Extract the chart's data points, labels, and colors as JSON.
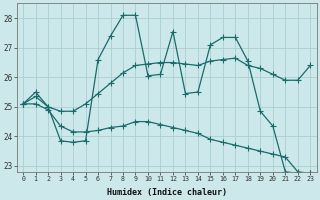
{
  "xlabel": "Humidex (Indice chaleur)",
  "xlim": [
    -0.5,
    23.5
  ],
  "ylim": [
    22.8,
    28.5
  ],
  "yticks": [
    23,
    24,
    25,
    26,
    27,
    28
  ],
  "xticks": [
    0,
    1,
    2,
    3,
    4,
    5,
    6,
    7,
    8,
    9,
    10,
    11,
    12,
    13,
    14,
    15,
    16,
    17,
    18,
    19,
    20,
    21,
    22,
    23
  ],
  "background_color": "#cce8ea",
  "grid_color": "#aacfd2",
  "line_color": "#1a6b6b",
  "curve1_x": [
    0,
    1,
    2,
    3,
    4,
    5,
    6,
    7,
    8,
    9,
    10,
    11,
    12,
    13,
    14,
    15,
    16,
    17,
    18,
    19,
    20,
    21,
    22,
    23
  ],
  "curve1_y": [
    25.1,
    25.5,
    25.0,
    23.85,
    23.8,
    23.85,
    26.6,
    27.4,
    28.1,
    28.1,
    26.05,
    26.1,
    27.55,
    25.45,
    25.5,
    27.1,
    27.35,
    27.35,
    26.55,
    24.85,
    24.35,
    22.8,
    22.75,
    22.75
  ],
  "curve2_x": [
    0,
    1,
    2,
    3,
    4,
    5,
    6,
    7,
    8,
    9,
    10,
    11,
    12,
    13,
    14,
    15,
    16,
    17,
    18,
    19,
    20,
    21,
    22,
    23
  ],
  "curve2_y": [
    25.1,
    25.35,
    25.0,
    24.85,
    24.85,
    25.1,
    25.45,
    25.8,
    26.15,
    26.4,
    26.45,
    26.5,
    26.5,
    26.45,
    26.4,
    26.55,
    26.6,
    26.65,
    26.4,
    26.3,
    26.1,
    25.9,
    25.9,
    26.4
  ],
  "curve3_x": [
    0,
    1,
    2,
    3,
    4,
    5,
    6,
    7,
    8,
    9,
    10,
    11,
    12,
    13,
    14,
    15,
    16,
    17,
    18,
    19,
    20,
    21,
    22,
    23
  ],
  "curve3_y": [
    25.1,
    25.1,
    24.9,
    24.35,
    24.15,
    24.15,
    24.2,
    24.3,
    24.35,
    24.5,
    24.5,
    24.4,
    24.3,
    24.2,
    24.1,
    23.9,
    23.8,
    23.7,
    23.6,
    23.5,
    23.4,
    23.3,
    22.8,
    22.75
  ]
}
